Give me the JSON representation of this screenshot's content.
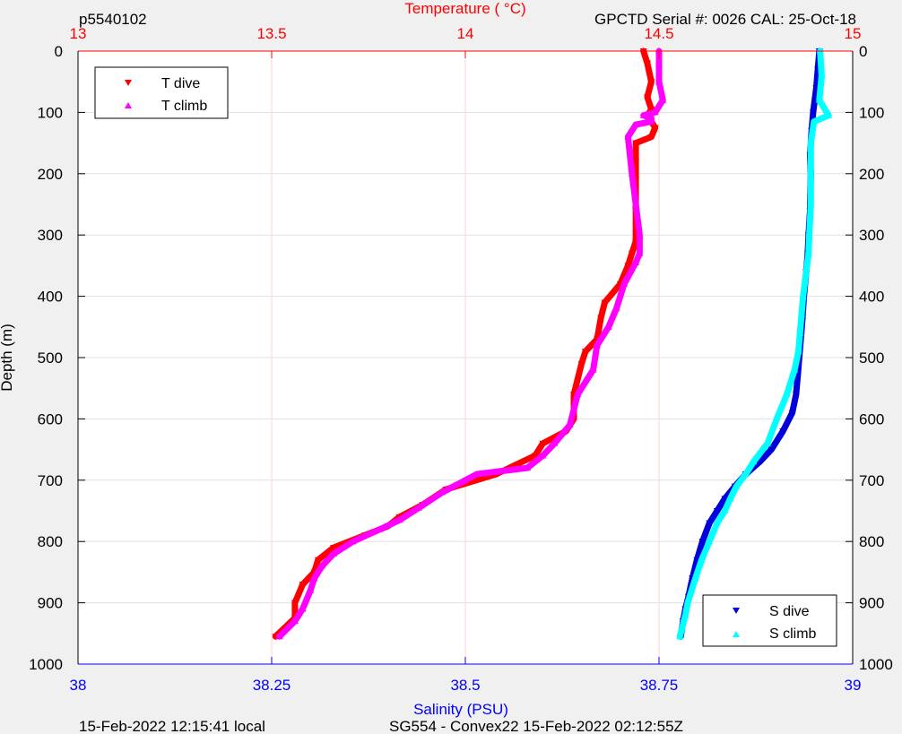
{
  "header": {
    "left_id": "p5540102",
    "right_serial": "GPCTD Serial #: 0026 CAL: 25-Oct-18"
  },
  "footer": {
    "left_time": "15-Feb-2022 12:15:41 local",
    "center_mission": "SG554 - Convex22 15-Feb-2022 02:12:55Z"
  },
  "colors": {
    "t_dive": "#ff0000",
    "t_climb": "#ff00ff",
    "s_dive": "#0000dd",
    "s_climb": "#00ffff",
    "temp_axis": "#ff0000",
    "sal_axis": "#0000ff"
  },
  "chart_data": {
    "type": "scatter",
    "title": "",
    "ylabel": "Depth (m)",
    "ylim": [
      0,
      1000
    ],
    "y_reversed": true,
    "y_ticks": [
      "0",
      "100",
      "200",
      "300",
      "400",
      "500",
      "600",
      "700",
      "800",
      "900",
      "1000"
    ],
    "temperature_axis": {
      "label": "Temperature (    °C)",
      "position": "top",
      "range": [
        13,
        15
      ],
      "ticks": [
        "13",
        "13.5",
        "14",
        "14.5",
        "15"
      ]
    },
    "salinity_axis": {
      "label": "Salinity (PSU)",
      "position": "bottom",
      "range": [
        38,
        39
      ],
      "ticks": [
        "38",
        "38.25",
        "38.5",
        "38.75",
        "39"
      ]
    },
    "grid": true,
    "legends": [
      {
        "placement": "top-left",
        "entries": [
          "T dive",
          "T climb"
        ]
      },
      {
        "placement": "bottom-right",
        "entries": [
          "S dive",
          "S climb"
        ]
      }
    ],
    "series": [
      {
        "name": "T dive",
        "axis": "temperature",
        "marker": "triangle-down",
        "x": [
          14.46,
          14.47,
          14.48,
          14.47,
          14.48,
          14.47,
          14.48,
          14.49,
          14.48,
          14.44,
          14.44,
          14.44,
          14.44,
          14.44,
          14.43,
          14.42,
          14.4,
          14.36,
          14.35,
          14.34,
          14.31,
          14.3,
          14.28,
          14.28,
          14.26,
          14.2,
          14.18,
          14.08,
          13.95,
          13.89,
          13.83,
          13.8,
          13.74,
          13.66,
          13.62,
          13.61,
          13.58,
          13.56,
          13.56,
          13.51
        ],
        "y": [
          0,
          20,
          50,
          75,
          95,
          105,
          115,
          125,
          140,
          150,
          180,
          210,
          260,
          310,
          330,
          350,
          380,
          410,
          435,
          470,
          490,
          510,
          560,
          600,
          620,
          640,
          660,
          690,
          715,
          740,
          760,
          775,
          790,
          810,
          830,
          850,
          870,
          900,
          925,
          955
        ]
      },
      {
        "name": "T climb",
        "axis": "temperature",
        "marker": "triangle-up",
        "x": [
          14.5,
          14.5,
          14.5,
          14.51,
          14.49,
          14.46,
          14.48,
          14.48,
          14.44,
          14.42,
          14.43,
          14.44,
          14.45,
          14.45,
          14.44,
          14.41,
          14.39,
          14.37,
          14.34,
          14.33,
          14.29,
          14.27,
          14.23,
          14.2,
          14.16,
          14.03,
          13.94,
          13.88,
          13.83,
          13.78,
          13.71,
          13.66,
          13.63,
          13.61,
          13.6,
          13.58,
          13.56,
          13.52
        ],
        "y": [
          0,
          20,
          50,
          80,
          100,
          105,
          110,
          115,
          120,
          140,
          200,
          250,
          300,
          330,
          345,
          380,
          420,
          450,
          480,
          520,
          560,
          610,
          640,
          660,
          680,
          690,
          720,
          745,
          765,
          780,
          800,
          820,
          840,
          860,
          880,
          910,
          930,
          955
        ]
      },
      {
        "name": "S dive",
        "axis": "salinity",
        "marker": "triangle-down",
        "x": [
          38.957,
          38.955,
          38.953,
          38.949,
          38.947,
          38.945,
          38.946,
          38.945,
          38.943,
          38.942,
          38.94,
          38.937,
          38.935,
          38.933,
          38.931,
          38.929,
          38.927,
          38.922,
          38.91,
          38.895,
          38.88,
          38.862,
          38.848,
          38.835,
          38.825,
          38.815,
          38.806,
          38.799,
          38.793,
          38.788,
          38.784,
          38.781,
          38.778
        ],
        "y": [
          0,
          30,
          60,
          100,
          130,
          170,
          200,
          260,
          300,
          330,
          360,
          400,
          440,
          470,
          500,
          530,
          560,
          590,
          620,
          650,
          670,
          690,
          710,
          730,
          750,
          770,
          800,
          830,
          860,
          890,
          910,
          930,
          955
        ]
      },
      {
        "name": "S climb",
        "axis": "salinity",
        "marker": "triangle-up",
        "x": [
          38.958,
          38.96,
          38.957,
          38.969,
          38.95,
          38.946,
          38.946,
          38.944,
          38.943,
          38.94,
          38.936,
          38.934,
          38.932,
          38.93,
          38.925,
          38.915,
          38.902,
          38.89,
          38.872,
          38.862,
          38.85,
          38.842,
          38.835,
          38.825,
          38.815,
          38.805,
          38.797,
          38.792,
          38.787,
          38.784,
          38.78,
          38.777
        ],
        "y": [
          0,
          40,
          80,
          105,
          115,
          150,
          250,
          300,
          330,
          360,
          400,
          430,
          460,
          490,
          520,
          560,
          600,
          640,
          670,
          690,
          710,
          730,
          750,
          770,
          800,
          830,
          860,
          880,
          900,
          920,
          940,
          955
        ]
      }
    ]
  }
}
